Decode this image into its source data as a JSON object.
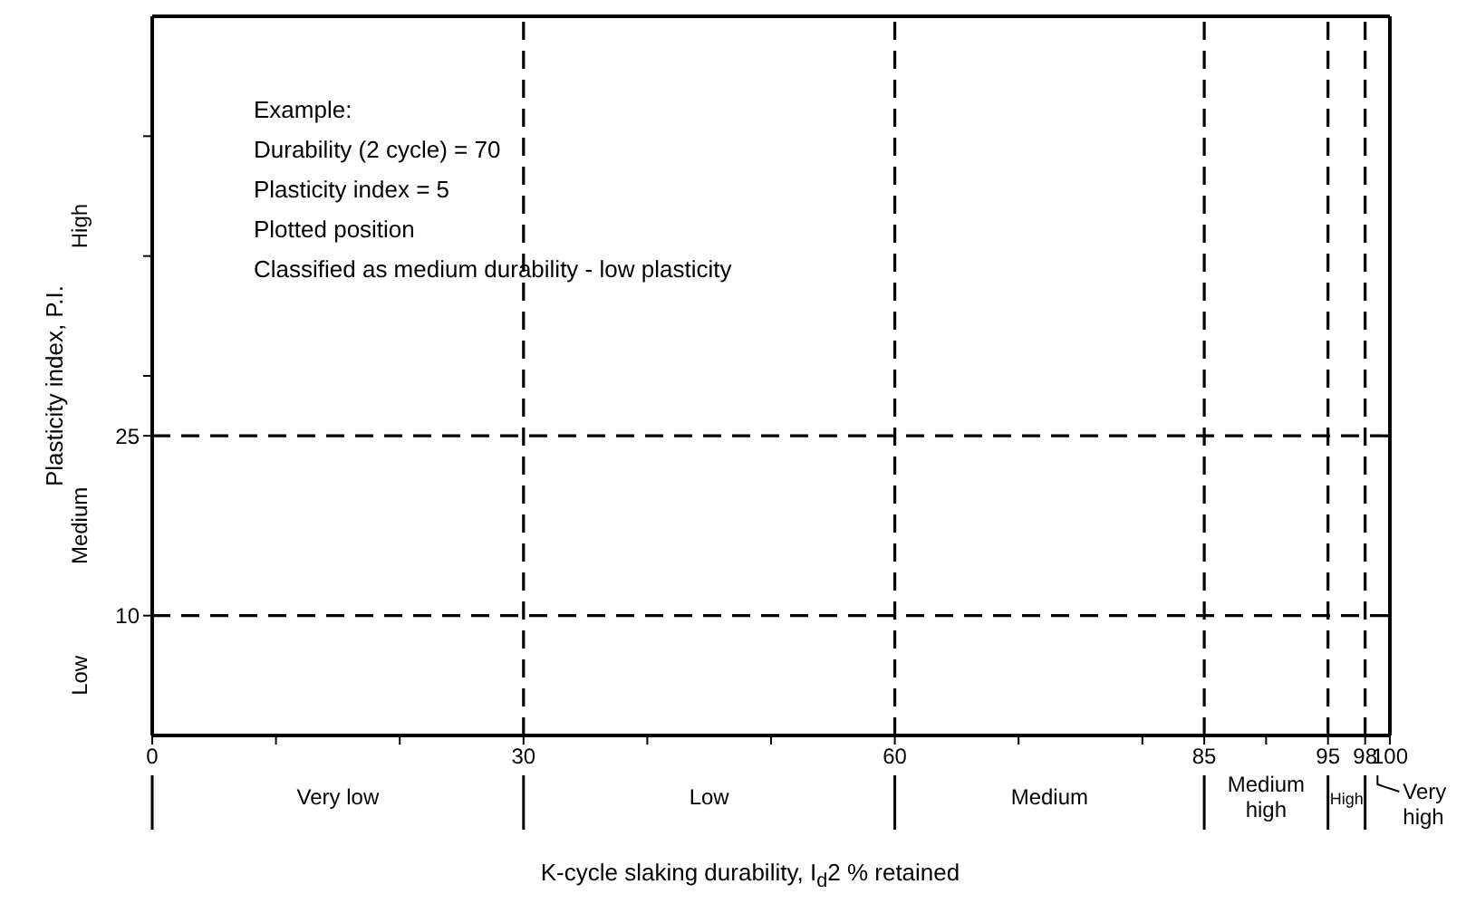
{
  "chart_data": {
    "type": "scatter",
    "xlabel": "K-cycle slaking durability, I$_{d}$2 % retained",
    "ylabel": "Plasticity index, P.I.",
    "xlim": [
      0,
      100
    ],
    "xticks": [
      0,
      {
        "value": 10,
        "label": null
      },
      {
        "value": 20,
        "label": null
      },
      30,
      {
        "value": 40,
        "label": null
      },
      {
        "value": 50,
        "label": null
      },
      60,
      {
        "value": 70,
        "label": null
      },
      {
        "value": 80,
        "label": null
      },
      85,
      {
        "value": 90,
        "label": null
      },
      95,
      98,
      100
    ],
    "ylim": [
      0,
      60
    ],
    "yticks": [
      10,
      25,
      {
        "value": 30,
        "label": null
      },
      {
        "value": 40,
        "label": null
      },
      {
        "value": 50,
        "label": null
      }
    ],
    "ref_lines": [
      {
        "axis": "x",
        "value": 30,
        "line_style": "dashed"
      },
      {
        "axis": "x",
        "value": 60,
        "line_style": "dashed"
      },
      {
        "axis": "x",
        "value": 85,
        "line_style": "dashed"
      },
      {
        "axis": "x",
        "value": 95,
        "line_style": "dashed"
      },
      {
        "axis": "x",
        "value": 98,
        "line_style": "dashed"
      },
      {
        "axis": "y",
        "value": 10,
        "line_style": "dashed"
      },
      {
        "axis": "y",
        "value": 25,
        "line_style": "dashed"
      }
    ],
    "annotations": [
      "Example:",
      "Durability (2 cycle) = 70",
      "Plasticity index = 5",
      "Plotted position",
      "Classified as medium durability - low plasticity",
      "Very low",
      "Low",
      "Medium",
      "Medium high",
      "High",
      "Very high",
      "Low",
      "Medium",
      "High"
    ]
  }
}
